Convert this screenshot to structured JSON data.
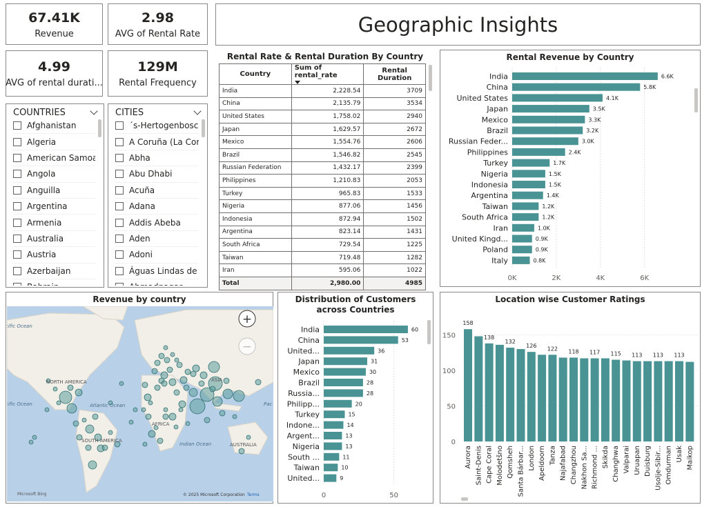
{
  "kpis": {
    "revenue": {
      "value": "67.41K",
      "label": "Revenue"
    },
    "avg_rental_rate": {
      "value": "2.98",
      "label": "AVG of Rental Rate"
    },
    "avg_rental_duration": {
      "value": "4.99",
      "label": "AVG of rental durati..."
    },
    "rental_frequency": {
      "value": "129M",
      "label": "Rental Frequency"
    }
  },
  "page_title": "Geographic Insights",
  "slicers": {
    "countries": {
      "title": "COUNTRIES",
      "items": [
        "Afghanistan",
        "Algeria",
        "American Samoa",
        "Angola",
        "Anguilla",
        "Argentina",
        "Armenia",
        "Australia",
        "Austria",
        "Azerbaijan",
        "Bahrain"
      ]
    },
    "cities": {
      "title": "CITIES",
      "items": [
        "´s-Hertogenbosch",
        "A Coruña (La Coruña)",
        "Abha",
        "Abu Dhabi",
        "Acuña",
        "Adana",
        "Addis Abeba",
        "Aden",
        "Adoni",
        "Águas Lindas de G...",
        "Ahmadnagar"
      ]
    }
  },
  "rental_table": {
    "title": "Rental Rate & Rental Duration By Country",
    "columns": [
      "Country",
      "Sum of rental_rate",
      "Rental Duration"
    ],
    "rows": [
      [
        "India",
        "2,228.54",
        "3709"
      ],
      [
        "China",
        "2,135.79",
        "3534"
      ],
      [
        "United States",
        "1,758.02",
        "2940"
      ],
      [
        "Japan",
        "1,629.57",
        "2672"
      ],
      [
        "Mexico",
        "1,554.76",
        "2606"
      ],
      [
        "Brazil",
        "1,546.82",
        "2545"
      ],
      [
        "Russian Federation",
        "1,432.17",
        "2399"
      ],
      [
        "Philippines",
        "1,210.83",
        "2053"
      ],
      [
        "Turkey",
        "965.83",
        "1533"
      ],
      [
        "Nigeria",
        "877.06",
        "1456"
      ],
      [
        "Indonesia",
        "872.94",
        "1502"
      ],
      [
        "Argentina",
        "823.14",
        "1431"
      ],
      [
        "South Africa",
        "729.54",
        "1225"
      ],
      [
        "Taiwan",
        "719.48",
        "1282"
      ],
      [
        "Iran",
        "595.06",
        "1022"
      ]
    ],
    "total": [
      "Total",
      "2,980.00",
      "4985"
    ]
  },
  "map": {
    "title": "Revenue by country",
    "labels": {
      "north_america": "NORTH AMERICA",
      "south_america": "SOUTH AMERICA",
      "asia": "ASIA",
      "africa": "AFRICA",
      "australia": "AUSTRALIA",
      "atlantic": "Atlantic Ocean",
      "pacific_left": "cific Ocean",
      "pacific_left2": "cific Ocean",
      "pacific_right": "Pac",
      "indian": "Indian Ocean"
    },
    "attribution": "© 2025 Microsoft Corporation",
    "terms": "Terms",
    "bing": "Microsoft Bing",
    "zoom_in": "+",
    "zoom_out": "−"
  },
  "colors": {
    "bar": "#4a9394",
    "map_water": "#b9d1e8",
    "map_land": "#f2efe9",
    "bubble": "#5f9e9e"
  },
  "chart_data": [
    {
      "type": "bar",
      "orientation": "horizontal",
      "title": "Rental Revenue by Country",
      "categories": [
        "India",
        "China",
        "United States",
        "Japan",
        "Mexico",
        "Brazil",
        "Russian Feder...",
        "Philippines",
        "Turkey",
        "Nigeria",
        "Indonesia",
        "Argentina",
        "Taiwan",
        "South Africa",
        "Iran",
        "United Kingd...",
        "Poland",
        "Italy"
      ],
      "values": [
        6.6,
        5.8,
        4.1,
        3.5,
        3.3,
        3.2,
        3.0,
        2.4,
        1.7,
        1.5,
        1.5,
        1.4,
        1.2,
        1.2,
        1.0,
        0.9,
        0.9,
        0.8
      ],
      "data_labels": [
        "6.6K",
        "5.8K",
        "4.1K",
        "3.5K",
        "3.3K",
        "3.2K",
        "3.0K",
        "2.4K",
        "1.7K",
        "1.5K",
        "1.5K",
        "1.4K",
        "1.2K",
        "1.2K",
        "1.0K",
        "0.9K",
        "0.9K",
        "0.8K"
      ],
      "xlim": [
        0,
        7.2
      ],
      "xticks": [
        "0K",
        "2K",
        "4K",
        "6K"
      ],
      "xtick_values": [
        0,
        2,
        4,
        6
      ]
    },
    {
      "type": "bar",
      "orientation": "horizontal",
      "title": "Distribution of Customers across Countries",
      "categories": [
        "India",
        "China",
        "United...",
        "Japan",
        "Mexico",
        "Brazil",
        "Russia...",
        "Philipp...",
        "Turkey",
        "Indone...",
        "Argent...",
        "Nigeria",
        "South ...",
        "Taiwan",
        "United..."
      ],
      "values": [
        60,
        53,
        36,
        31,
        30,
        28,
        28,
        20,
        15,
        14,
        13,
        13,
        11,
        10,
        9
      ],
      "data_labels": [
        "60",
        "53",
        "36",
        "31",
        "30",
        "28",
        "28",
        "20",
        "15",
        "14",
        "13",
        "13",
        "11",
        "10",
        "9"
      ],
      "xlim": [
        0,
        62
      ],
      "xticks": [
        "0",
        "50"
      ],
      "xtick_values": [
        0,
        50
      ]
    },
    {
      "type": "bar",
      "orientation": "vertical",
      "title": "Location wise Customer Ratings",
      "categories": [
        "Aurora",
        "Saint-Denis",
        "Cape Coral",
        "Molodetšno",
        "Qomsheh",
        "Santa Bárbar...",
        "London",
        "Apeldoorn",
        "Tanza",
        "Najafabad",
        "Changzhou",
        "Nakhon Sa...",
        "Richmond ...",
        "Skikda",
        "Changhwa",
        "Valparai",
        "Uruapan",
        "Duisburg",
        "Usolje-Sibir...",
        "Omdurman",
        "Usak",
        "Maikop"
      ],
      "values": [
        158,
        148,
        138,
        136,
        132,
        130,
        126,
        122,
        122,
        118,
        118,
        117,
        117,
        117,
        115,
        114,
        113,
        113,
        113,
        113,
        113,
        112
      ],
      "data_labels": [
        "158",
        "",
        "138",
        "",
        "132",
        "",
        "126",
        "",
        "122",
        "",
        "118",
        "",
        "117",
        "",
        "115",
        "",
        "113",
        "",
        "113",
        "",
        "113",
        ""
      ],
      "ylim": [
        0,
        165
      ],
      "yticks": [
        "0",
        "50",
        "100",
        "150"
      ],
      "ytick_values": [
        0,
        50,
        100,
        150
      ]
    }
  ]
}
